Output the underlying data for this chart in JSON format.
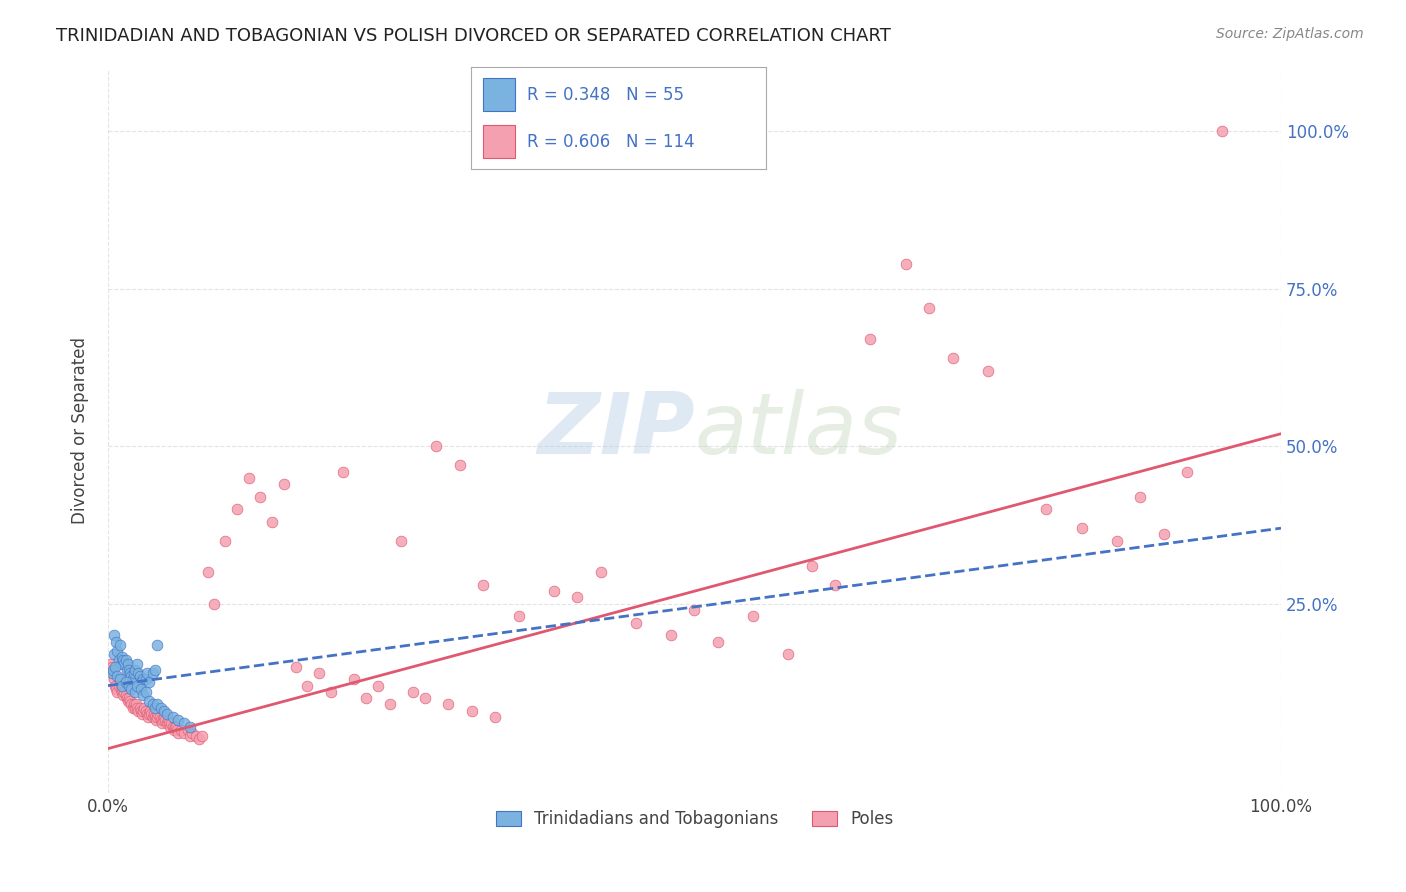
{
  "title": "TRINIDADIAN AND TOBAGONIAN VS POLISH DIVORCED OR SEPARATED CORRELATION CHART",
  "source": "Source: ZipAtlas.com",
  "ylabel": "Divorced or Separated",
  "r_blue": 0.348,
  "n_blue": 55,
  "r_pink": 0.606,
  "n_pink": 114,
  "blue_scatter": [
    [
      0.005,
      0.17
    ],
    [
      0.005,
      0.2
    ],
    [
      0.007,
      0.19
    ],
    [
      0.008,
      0.175
    ],
    [
      0.009,
      0.16
    ],
    [
      0.01,
      0.185
    ],
    [
      0.011,
      0.155
    ],
    [
      0.012,
      0.165
    ],
    [
      0.013,
      0.16
    ],
    [
      0.014,
      0.155
    ],
    [
      0.015,
      0.16
    ],
    [
      0.016,
      0.145
    ],
    [
      0.017,
      0.155
    ],
    [
      0.018,
      0.145
    ],
    [
      0.019,
      0.14
    ],
    [
      0.02,
      0.135
    ],
    [
      0.021,
      0.13
    ],
    [
      0.022,
      0.14
    ],
    [
      0.023,
      0.145
    ],
    [
      0.025,
      0.155
    ],
    [
      0.026,
      0.14
    ],
    [
      0.027,
      0.135
    ],
    [
      0.028,
      0.125
    ],
    [
      0.03,
      0.13
    ],
    [
      0.032,
      0.13
    ],
    [
      0.033,
      0.14
    ],
    [
      0.035,
      0.125
    ],
    [
      0.038,
      0.14
    ],
    [
      0.04,
      0.145
    ],
    [
      0.042,
      0.185
    ],
    [
      0.003,
      0.14
    ],
    [
      0.004,
      0.145
    ],
    [
      0.006,
      0.15
    ],
    [
      0.008,
      0.135
    ],
    [
      0.01,
      0.13
    ],
    [
      0.012,
      0.12
    ],
    [
      0.015,
      0.125
    ],
    [
      0.018,
      0.12
    ],
    [
      0.02,
      0.115
    ],
    [
      0.023,
      0.11
    ],
    [
      0.025,
      0.12
    ],
    [
      0.028,
      0.115
    ],
    [
      0.03,
      0.105
    ],
    [
      0.032,
      0.11
    ],
    [
      0.035,
      0.095
    ],
    [
      0.038,
      0.09
    ],
    [
      0.04,
      0.085
    ],
    [
      0.042,
      0.09
    ],
    [
      0.045,
      0.085
    ],
    [
      0.048,
      0.08
    ],
    [
      0.05,
      0.075
    ],
    [
      0.055,
      0.07
    ],
    [
      0.06,
      0.065
    ],
    [
      0.065,
      0.06
    ],
    [
      0.07,
      0.055
    ]
  ],
  "pink_scatter": [
    [
      0.002,
      0.155
    ],
    [
      0.003,
      0.15
    ],
    [
      0.004,
      0.14
    ],
    [
      0.005,
      0.13
    ],
    [
      0.006,
      0.12
    ],
    [
      0.007,
      0.115
    ],
    [
      0.008,
      0.11
    ],
    [
      0.009,
      0.12
    ],
    [
      0.01,
      0.13
    ],
    [
      0.011,
      0.115
    ],
    [
      0.012,
      0.11
    ],
    [
      0.013,
      0.105
    ],
    [
      0.014,
      0.11
    ],
    [
      0.015,
      0.105
    ],
    [
      0.016,
      0.1
    ],
    [
      0.017,
      0.095
    ],
    [
      0.018,
      0.1
    ],
    [
      0.019,
      0.095
    ],
    [
      0.02,
      0.09
    ],
    [
      0.021,
      0.085
    ],
    [
      0.022,
      0.09
    ],
    [
      0.023,
      0.085
    ],
    [
      0.024,
      0.09
    ],
    [
      0.025,
      0.085
    ],
    [
      0.026,
      0.08
    ],
    [
      0.027,
      0.085
    ],
    [
      0.028,
      0.08
    ],
    [
      0.029,
      0.075
    ],
    [
      0.03,
      0.08
    ],
    [
      0.031,
      0.085
    ],
    [
      0.032,
      0.08
    ],
    [
      0.033,
      0.075
    ],
    [
      0.034,
      0.07
    ],
    [
      0.035,
      0.075
    ],
    [
      0.036,
      0.08
    ],
    [
      0.037,
      0.075
    ],
    [
      0.038,
      0.07
    ],
    [
      0.039,
      0.075
    ],
    [
      0.04,
      0.07
    ],
    [
      0.041,
      0.065
    ],
    [
      0.042,
      0.07
    ],
    [
      0.043,
      0.075
    ],
    [
      0.044,
      0.07
    ],
    [
      0.045,
      0.065
    ],
    [
      0.046,
      0.06
    ],
    [
      0.047,
      0.065
    ],
    [
      0.048,
      0.07
    ],
    [
      0.049,
      0.065
    ],
    [
      0.05,
      0.06
    ],
    [
      0.051,
      0.065
    ],
    [
      0.052,
      0.06
    ],
    [
      0.053,
      0.055
    ],
    [
      0.054,
      0.06
    ],
    [
      0.055,
      0.055
    ],
    [
      0.056,
      0.05
    ],
    [
      0.057,
      0.055
    ],
    [
      0.058,
      0.055
    ],
    [
      0.059,
      0.05
    ],
    [
      0.06,
      0.045
    ],
    [
      0.062,
      0.05
    ],
    [
      0.065,
      0.045
    ],
    [
      0.068,
      0.05
    ],
    [
      0.07,
      0.04
    ],
    [
      0.072,
      0.045
    ],
    [
      0.075,
      0.04
    ],
    [
      0.078,
      0.035
    ],
    [
      0.08,
      0.04
    ],
    [
      0.085,
      0.3
    ],
    [
      0.09,
      0.25
    ],
    [
      0.1,
      0.35
    ],
    [
      0.11,
      0.4
    ],
    [
      0.12,
      0.45
    ],
    [
      0.13,
      0.42
    ],
    [
      0.14,
      0.38
    ],
    [
      0.15,
      0.44
    ],
    [
      0.2,
      0.46
    ],
    [
      0.25,
      0.35
    ],
    [
      0.28,
      0.5
    ],
    [
      0.3,
      0.47
    ],
    [
      0.32,
      0.28
    ],
    [
      0.35,
      0.23
    ],
    [
      0.38,
      0.27
    ],
    [
      0.4,
      0.26
    ],
    [
      0.42,
      0.3
    ],
    [
      0.45,
      0.22
    ],
    [
      0.48,
      0.2
    ],
    [
      0.5,
      0.24
    ],
    [
      0.52,
      0.19
    ],
    [
      0.55,
      0.23
    ],
    [
      0.58,
      0.17
    ],
    [
      0.6,
      0.31
    ],
    [
      0.62,
      0.28
    ],
    [
      0.65,
      0.67
    ],
    [
      0.68,
      0.79
    ],
    [
      0.7,
      0.72
    ],
    [
      0.72,
      0.64
    ],
    [
      0.75,
      0.62
    ],
    [
      0.8,
      0.4
    ],
    [
      0.83,
      0.37
    ],
    [
      0.86,
      0.35
    ],
    [
      0.88,
      0.42
    ],
    [
      0.9,
      0.36
    ],
    [
      0.92,
      0.46
    ],
    [
      0.95,
      1.0
    ],
    [
      0.16,
      0.15
    ],
    [
      0.17,
      0.12
    ],
    [
      0.18,
      0.14
    ],
    [
      0.19,
      0.11
    ],
    [
      0.21,
      0.13
    ],
    [
      0.22,
      0.1
    ],
    [
      0.23,
      0.12
    ],
    [
      0.24,
      0.09
    ],
    [
      0.26,
      0.11
    ],
    [
      0.27,
      0.1
    ],
    [
      0.29,
      0.09
    ],
    [
      0.31,
      0.08
    ],
    [
      0.33,
      0.07
    ]
  ],
  "blue_line_x": [
    0.0,
    1.0
  ],
  "blue_line_y": [
    0.12,
    0.37
  ],
  "pink_line_x": [
    0.0,
    1.0
  ],
  "pink_line_y": [
    0.02,
    0.52
  ],
  "blue_color": "#7ab3e0",
  "pink_color": "#f4a0b0",
  "blue_line_color": "#4472c4",
  "pink_line_color": "#e05870",
  "background_color": "#ffffff",
  "grid_color": "#dddddd",
  "legend_text_color": "#4472c4",
  "title_color": "#222222",
  "watermark_zip": "ZIP",
  "watermark_atlas": "atlas",
  "xlim": [
    0.0,
    1.0
  ],
  "ylim": [
    -0.05,
    1.1
  ],
  "xtick_labels": [
    "0.0%",
    "100.0%"
  ],
  "ytick_labels": [
    "25.0%",
    "50.0%",
    "75.0%",
    "100.0%"
  ],
  "ytick_values": [
    0.25,
    0.5,
    0.75,
    1.0
  ],
  "bottom_legend_labels": [
    "Trinidadians and Tobagonians",
    "Poles"
  ]
}
